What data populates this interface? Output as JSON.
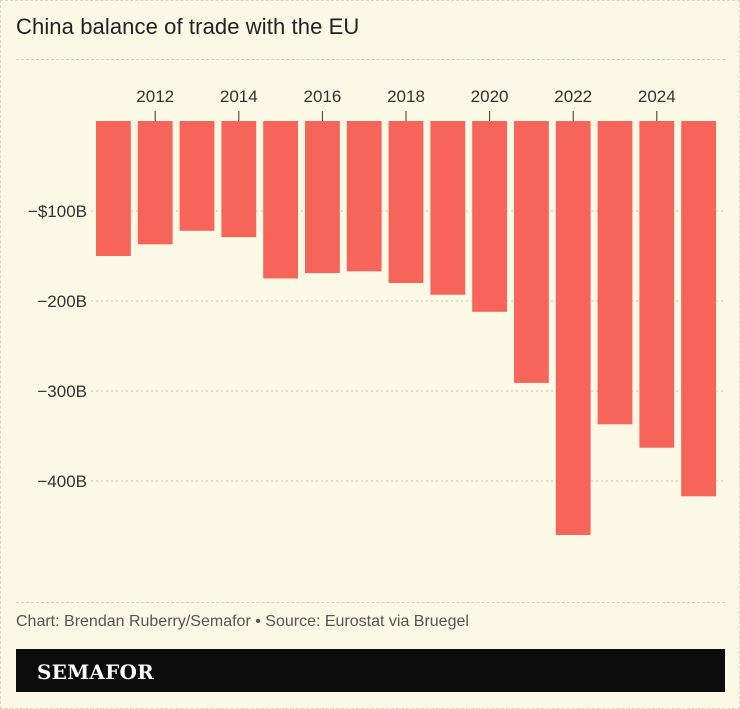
{
  "title": "China balance of trade with the EU",
  "source": "Chart: Brendan Ruberry/Semafor • Source: Eurostat via Bruegel",
  "brand": "SEMAFOR",
  "colors": {
    "bar": "#f6645a",
    "background": "#fbf8e6",
    "grid": "#c9c6b3",
    "brand_bar": "#0c0c0c"
  },
  "chart_data": {
    "type": "bar",
    "x": [
      2011,
      2012,
      2013,
      2014,
      2015,
      2016,
      2017,
      2018,
      2019,
      2020,
      2021,
      2022,
      2023,
      2024,
      2025
    ],
    "values": [
      -150,
      -137,
      -122,
      -129,
      -175,
      -169,
      -167,
      -180,
      -193,
      -212,
      -291,
      -460,
      -337,
      -363,
      -417
    ],
    "x_tick_labels": [
      "2012",
      "2014",
      "2016",
      "2018",
      "2020",
      "2022",
      "2024"
    ],
    "y_tick_labels": [
      "−$100B",
      "−200B",
      "−300B",
      "−400B"
    ],
    "y_ticks": [
      -100,
      -200,
      -300,
      -400
    ],
    "ylim": [
      -480,
      0
    ],
    "xlabel": "",
    "ylabel": "",
    "grid": true,
    "x_axis_position": "top"
  }
}
